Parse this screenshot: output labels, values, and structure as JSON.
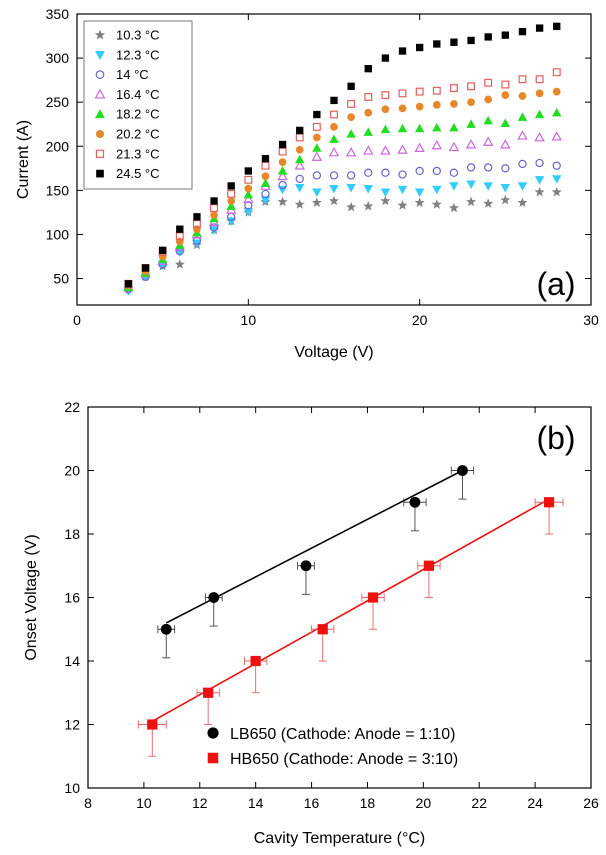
{
  "chart_data": [
    {
      "panel_label": "(a)",
      "type": "scatter",
      "xlabel": "Voltage (V)",
      "ylabel": "Current (A)",
      "xlim": [
        0,
        30
      ],
      "ylim": [
        20,
        350
      ],
      "xticks": [
        0,
        10,
        20,
        30
      ],
      "yticks": [
        50,
        100,
        150,
        200,
        250,
        300,
        350
      ],
      "grid": false,
      "legend_position": "top-left",
      "series": [
        {
          "name": "10.3 °C",
          "marker": "star",
          "color": "#808080",
          "x": [
            3,
            4,
            5,
            6,
            7,
            8,
            9,
            10,
            11,
            12,
            13,
            14,
            15,
            16,
            17,
            18,
            19,
            20,
            21,
            22,
            23,
            24,
            25,
            26,
            27,
            28
          ],
          "y": [
            38,
            52,
            64,
            66,
            88,
            105,
            115,
            125,
            137,
            137,
            134,
            136,
            138,
            131,
            132,
            138,
            133,
            136,
            134,
            130,
            137,
            135,
            139,
            136,
            148,
            148
          ]
        },
        {
          "name": "12.3 °C",
          "marker": "triangle-down",
          "color": "#33ccff",
          "x": [
            3,
            4,
            5,
            6,
            7,
            8,
            9,
            10,
            11,
            12,
            13,
            14,
            15,
            16,
            17,
            18,
            19,
            20,
            21,
            22,
            23,
            24,
            25,
            26,
            27,
            28
          ],
          "y": [
            36,
            52,
            65,
            80,
            90,
            105,
            115,
            126,
            139,
            151,
            153,
            148,
            152,
            153,
            152,
            148,
            151,
            148,
            151,
            155,
            157,
            155,
            153,
            155,
            162,
            163
          ]
        },
        {
          "name": "14 °C",
          "marker": "circle-open",
          "color": "#6666cc",
          "x": [
            3,
            4,
            5,
            6,
            7,
            8,
            9,
            10,
            11,
            12,
            13,
            14,
            15,
            16,
            17,
            18,
            19,
            20,
            21,
            22,
            23,
            24,
            25,
            26,
            27,
            28
          ],
          "y": [
            38,
            52,
            66,
            81,
            93,
            108,
            120,
            133,
            146,
            156,
            163,
            167,
            167,
            167,
            170,
            170,
            168,
            172,
            172,
            170,
            176,
            176,
            175,
            180,
            181,
            178
          ]
        },
        {
          "name": "16.4 °C",
          "marker": "triangle-up-open",
          "color": "#cc66dd",
          "x": [
            3,
            4,
            5,
            6,
            7,
            8,
            9,
            10,
            11,
            12,
            13,
            14,
            15,
            16,
            17,
            18,
            19,
            20,
            21,
            22,
            23,
            24,
            25,
            26,
            27,
            28
          ],
          "y": [
            40,
            56,
            70,
            86,
            100,
            114,
            128,
            140,
            155,
            166,
            178,
            188,
            193,
            193,
            195,
            195,
            196,
            198,
            201,
            199,
            202,
            205,
            202,
            212,
            210,
            211
          ]
        },
        {
          "name": "18.2 °C",
          "marker": "triangle-up",
          "color": "#22dd22",
          "x": [
            3,
            4,
            5,
            6,
            7,
            8,
            9,
            10,
            11,
            12,
            13,
            14,
            15,
            16,
            17,
            18,
            19,
            20,
            21,
            22,
            23,
            24,
            25,
            26,
            27,
            28
          ],
          "y": [
            40,
            56,
            72,
            88,
            102,
            118,
            132,
            145,
            158,
            172,
            185,
            198,
            208,
            214,
            216,
            219,
            220,
            220,
            221,
            221,
            225,
            229,
            226,
            233,
            236,
            238
          ]
        },
        {
          "name": "20.2 °C",
          "marker": "circle",
          "color": "#e8872a",
          "x": [
            3,
            4,
            5,
            6,
            7,
            8,
            9,
            10,
            11,
            12,
            13,
            14,
            15,
            16,
            17,
            18,
            19,
            20,
            21,
            22,
            23,
            24,
            25,
            26,
            27,
            28
          ],
          "y": [
            42,
            58,
            75,
            92,
            106,
            122,
            138,
            152,
            166,
            182,
            196,
            210,
            222,
            233,
            238,
            242,
            243,
            245,
            247,
            248,
            250,
            253,
            258,
            257,
            260,
            262
          ]
        },
        {
          "name": "21.3 °C",
          "marker": "square-open",
          "color": "#e06060",
          "x": [
            3,
            4,
            5,
            6,
            7,
            8,
            9,
            10,
            11,
            12,
            13,
            14,
            15,
            16,
            17,
            18,
            19,
            20,
            21,
            22,
            23,
            24,
            25,
            26,
            27,
            28
          ],
          "y": [
            44,
            62,
            80,
            98,
            112,
            130,
            146,
            162,
            178,
            194,
            210,
            222,
            236,
            248,
            256,
            258,
            260,
            262,
            263,
            266,
            268,
            272,
            270,
            276,
            276,
            284
          ]
        },
        {
          "name": "24.5 °C",
          "marker": "square",
          "color": "#000000",
          "x": [
            3,
            4,
            5,
            6,
            7,
            8,
            9,
            10,
            11,
            12,
            13,
            14,
            15,
            16,
            17,
            18,
            19,
            20,
            21,
            22,
            23,
            24,
            25,
            26,
            27,
            28
          ],
          "y": [
            44,
            62,
            82,
            106,
            120,
            138,
            155,
            172,
            186,
            202,
            218,
            236,
            252,
            268,
            288,
            300,
            308,
            312,
            316,
            318,
            320,
            324,
            326,
            330,
            334,
            336
          ]
        }
      ]
    },
    {
      "panel_label": "(b)",
      "type": "scatter",
      "xlabel": "Cavity Temperature (°C)",
      "ylabel": "Onset Voltage (V)",
      "xlim": [
        8,
        26
      ],
      "ylim": [
        10,
        22
      ],
      "xticks": [
        8,
        10,
        12,
        14,
        16,
        18,
        20,
        22,
        24,
        26
      ],
      "yticks": [
        10,
        12,
        14,
        16,
        18,
        20,
        22
      ],
      "grid": false,
      "legend_position": "bottom-right",
      "series": [
        {
          "name": "LB650 (Cathode: Anode = 1:10)",
          "marker": "circle",
          "color": "#000000",
          "x": [
            10.8,
            12.5,
            15.8,
            19.7,
            21.4
          ],
          "y": [
            15,
            16,
            17,
            19,
            20
          ],
          "xerr": [
            0.3,
            0.3,
            0.3,
            0.4,
            0.4
          ],
          "yerr_upper": [
            0,
            0,
            0,
            0,
            0
          ],
          "yerr_lower": [
            0.9,
            0.9,
            0.9,
            0.9,
            0.9
          ],
          "fit": {
            "x": [
              10.8,
              21.4
            ],
            "y": [
              15.2,
              20.0
            ]
          }
        },
        {
          "name": "HB650 (Cathode: Anode = 3:10)",
          "marker": "square",
          "color": "#ee1111",
          "x": [
            10.3,
            12.3,
            14.0,
            16.4,
            18.2,
            20.2,
            24.5
          ],
          "y": [
            12,
            13,
            14,
            15,
            16,
            17,
            19
          ],
          "xerr": [
            0.5,
            0.4,
            0.4,
            0.4,
            0.4,
            0.4,
            0.5
          ],
          "yerr_upper": [
            0,
            0,
            0,
            0,
            0,
            0,
            0
          ],
          "yerr_lower": [
            1,
            1,
            1,
            1,
            1,
            1,
            1
          ],
          "fit": {
            "x": [
              10.3,
              24.5
            ],
            "y": [
              12.1,
              19.1
            ]
          }
        }
      ]
    }
  ]
}
